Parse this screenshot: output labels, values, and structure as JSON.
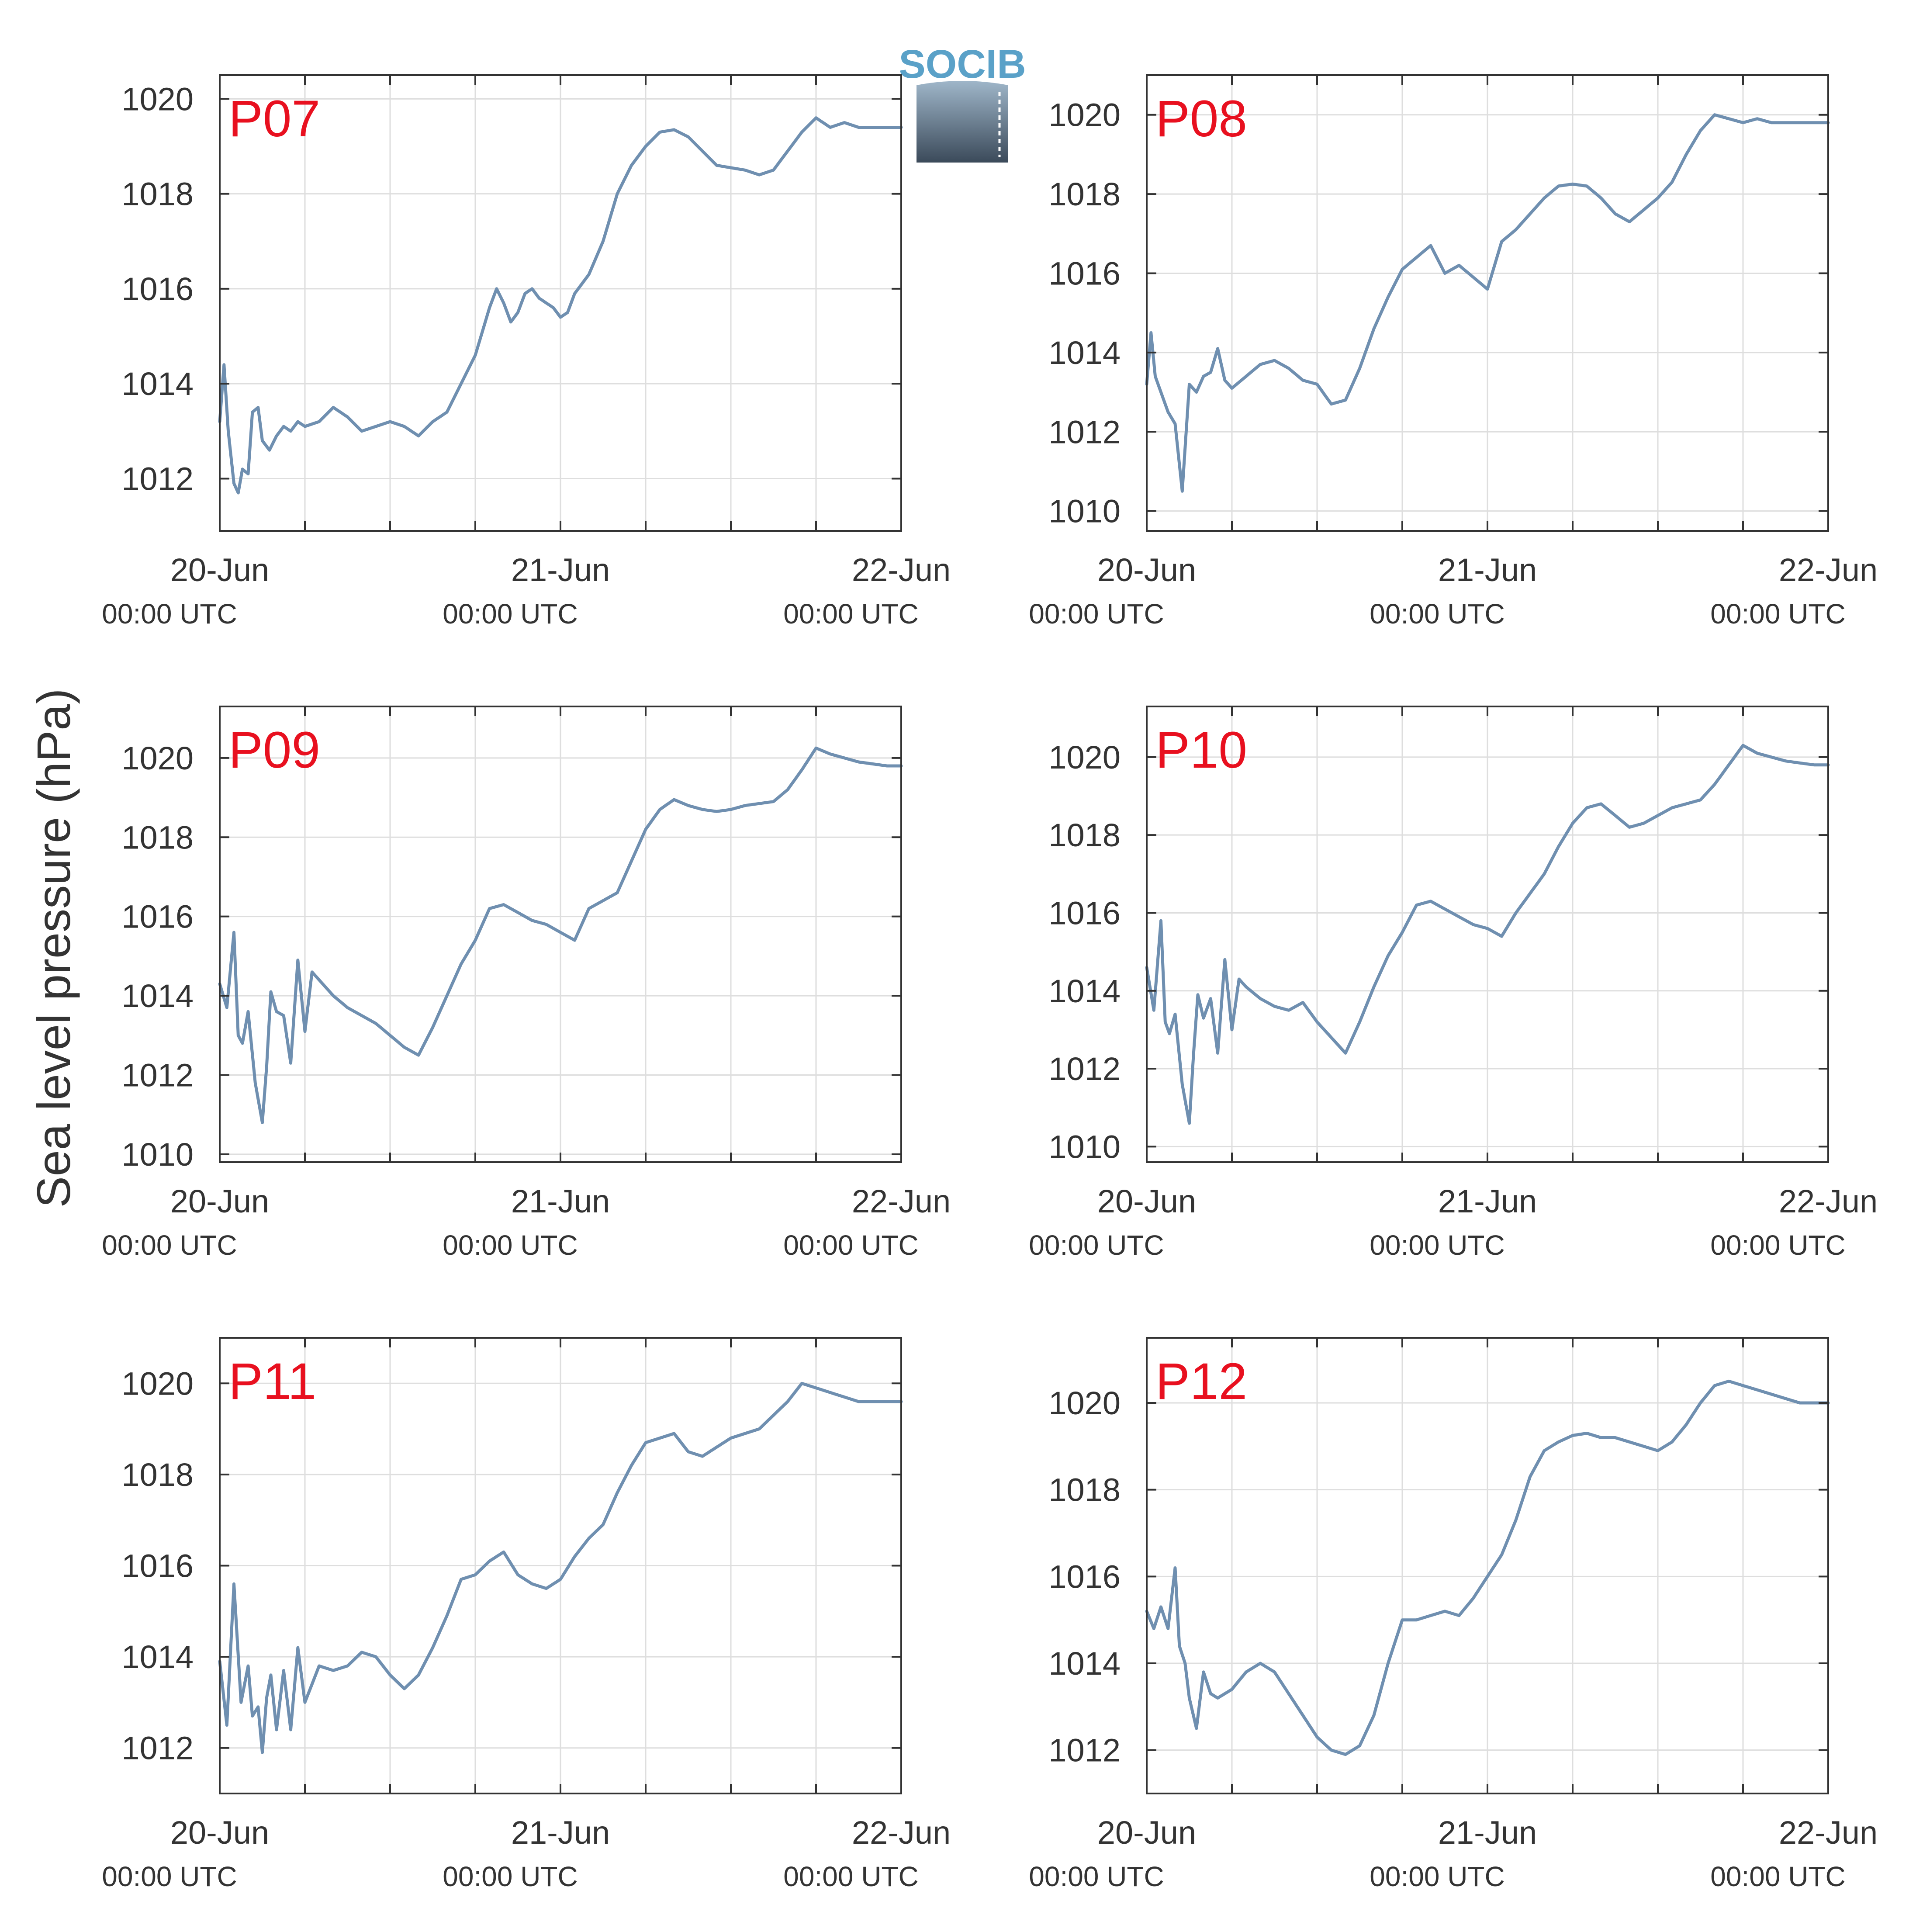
{
  "figure": {
    "ylabel": "Sea level pressure (hPa)",
    "logo_text": "SOCIB"
  },
  "colors": {
    "line": "#6f8fb0",
    "station_label": "#e8101f",
    "grid": "#dedede",
    "axis": "#333333",
    "logo_blue": "#5aa1c8",
    "logo_dark": "#3b4a5a"
  },
  "chart_data": [
    {
      "type": "line",
      "station": "P07",
      "x_tick_labels": [
        [
          "20-Jun",
          "00:00 UTC"
        ],
        [
          "21-Jun",
          "00:00 UTC"
        ],
        [
          "22-Jun",
          "00:00 UTC"
        ]
      ],
      "x_range_hours": [
        0,
        48
      ],
      "ylim": [
        1010.9,
        1020.5
      ],
      "y_ticks": [
        1012,
        1014,
        1016,
        1018,
        1020
      ],
      "grid": true,
      "series": [
        {
          "x": [
            0,
            0.3,
            0.6,
            1,
            1.3,
            1.6,
            2,
            2.3,
            2.7,
            3,
            3.5,
            4,
            4.5,
            5,
            5.5,
            6,
            7,
            8,
            9,
            10,
            11,
            12,
            13,
            14,
            15,
            16,
            17,
            18,
            18.5,
            19,
            19.5,
            20,
            20.5,
            21,
            21.5,
            22,
            22.5,
            23,
            23.5,
            24,
            24.5,
            25,
            25.5,
            26,
            27,
            28,
            29,
            30,
            31,
            32,
            33,
            34,
            35,
            36,
            37,
            38,
            39,
            40,
            41,
            42,
            43,
            44,
            45,
            46,
            47,
            48
          ],
          "y": [
            1013.2,
            1014.4,
            1013.0,
            1011.9,
            1011.7,
            1012.2,
            1012.1,
            1013.4,
            1013.5,
            1012.8,
            1012.6,
            1012.9,
            1013.1,
            1013.0,
            1013.2,
            1013.1,
            1013.2,
            1013.5,
            1013.3,
            1013.0,
            1013.1,
            1013.2,
            1013.1,
            1012.9,
            1013.2,
            1013.4,
            1014.0,
            1014.6,
            1015.1,
            1015.6,
            1016.0,
            1015.7,
            1015.3,
            1015.5,
            1015.9,
            1016.0,
            1015.8,
            1015.7,
            1015.6,
            1015.4,
            1015.5,
            1015.9,
            1016.1,
            1016.3,
            1017.0,
            1018.0,
            1018.6,
            1019.0,
            1019.3,
            1019.35,
            1019.2,
            1018.9,
            1018.6,
            1018.55,
            1018.5,
            1018.4,
            1018.5,
            1018.9,
            1019.3,
            1019.6,
            1019.4,
            1019.5,
            1019.4,
            1019.4,
            1019.4,
            1019.4
          ]
        }
      ]
    },
    {
      "type": "line",
      "station": "P08",
      "x_tick_labels": [
        [
          "20-Jun",
          "00:00 UTC"
        ],
        [
          "21-Jun",
          "00:00 UTC"
        ],
        [
          "22-Jun",
          "00:00 UTC"
        ]
      ],
      "x_range_hours": [
        0,
        48
      ],
      "ylim": [
        1009.5,
        1021.0
      ],
      "y_ticks": [
        1010,
        1012,
        1014,
        1016,
        1018,
        1020
      ],
      "grid": true,
      "series": [
        {
          "x": [
            0,
            0.3,
            0.6,
            1,
            1.5,
            2,
            2.5,
            3,
            3.5,
            4,
            4.5,
            5,
            5.5,
            6,
            7,
            8,
            9,
            10,
            11,
            12,
            13,
            14,
            15,
            16,
            17,
            18,
            19,
            20,
            21,
            22,
            23,
            24,
            25,
            26,
            27,
            28,
            29,
            30,
            31,
            32,
            33,
            34,
            35,
            36,
            37,
            38,
            39,
            40,
            41,
            42,
            43,
            44,
            45,
            46,
            47,
            48
          ],
          "y": [
            1013.2,
            1014.5,
            1013.4,
            1013.0,
            1012.5,
            1012.2,
            1010.5,
            1013.2,
            1013.0,
            1013.4,
            1013.5,
            1014.1,
            1013.3,
            1013.1,
            1013.4,
            1013.7,
            1013.8,
            1013.6,
            1013.3,
            1013.2,
            1012.7,
            1012.8,
            1013.6,
            1014.6,
            1015.4,
            1016.1,
            1016.4,
            1016.7,
            1016.0,
            1016.2,
            1015.9,
            1015.6,
            1016.8,
            1017.1,
            1017.5,
            1017.9,
            1018.2,
            1018.25,
            1018.2,
            1017.9,
            1017.5,
            1017.3,
            1017.6,
            1017.9,
            1018.3,
            1019.0,
            1019.6,
            1020.0,
            1019.9,
            1019.8,
            1019.9,
            1019.8,
            1019.8,
            1019.8,
            1019.8,
            1019.8
          ]
        }
      ]
    },
    {
      "type": "line",
      "station": "P09",
      "x_tick_labels": [
        [
          "20-Jun",
          "00:00 UTC"
        ],
        [
          "21-Jun",
          "00:00 UTC"
        ],
        [
          "22-Jun",
          "00:00 UTC"
        ]
      ],
      "x_range_hours": [
        0,
        48
      ],
      "ylim": [
        1009.8,
        1021.3
      ],
      "y_ticks": [
        1010,
        1012,
        1014,
        1016,
        1018,
        1020
      ],
      "grid": true,
      "series": [
        {
          "x": [
            0,
            0.5,
            1,
            1.3,
            1.6,
            2,
            2.5,
            3,
            3.3,
            3.6,
            4,
            4.5,
            5,
            5.5,
            6,
            6.5,
            7,
            8,
            9,
            10,
            11,
            12,
            13,
            14,
            15,
            16,
            17,
            18,
            19,
            20,
            21,
            22,
            23,
            24,
            25,
            26,
            27,
            28,
            29,
            30,
            31,
            32,
            33,
            34,
            35,
            36,
            37,
            38,
            39,
            40,
            41,
            42,
            43,
            44,
            45,
            46,
            47,
            48
          ],
          "y": [
            1014.3,
            1013.7,
            1015.6,
            1013.0,
            1012.8,
            1013.6,
            1011.8,
            1010.8,
            1012.2,
            1014.1,
            1013.6,
            1013.5,
            1012.3,
            1014.9,
            1013.1,
            1014.6,
            1014.4,
            1014.0,
            1013.7,
            1013.5,
            1013.3,
            1013.0,
            1012.7,
            1012.5,
            1013.2,
            1014.0,
            1014.8,
            1015.4,
            1016.2,
            1016.3,
            1016.1,
            1015.9,
            1015.8,
            1015.6,
            1015.4,
            1016.2,
            1016.4,
            1016.6,
            1017.4,
            1018.2,
            1018.7,
            1018.95,
            1018.8,
            1018.7,
            1018.65,
            1018.7,
            1018.8,
            1018.85,
            1018.9,
            1019.2,
            1019.7,
            1020.25,
            1020.1,
            1020.0,
            1019.9,
            1019.85,
            1019.8,
            1019.8
          ]
        }
      ]
    },
    {
      "type": "line",
      "station": "P10",
      "x_tick_labels": [
        [
          "20-Jun",
          "00:00 UTC"
        ],
        [
          "21-Jun",
          "00:00 UTC"
        ],
        [
          "22-Jun",
          "00:00 UTC"
        ]
      ],
      "x_range_hours": [
        0,
        48
      ],
      "ylim": [
        1009.6,
        1021.3
      ],
      "y_ticks": [
        1010,
        1012,
        1014,
        1016,
        1018,
        1020
      ],
      "grid": true,
      "series": [
        {
          "x": [
            0,
            0.5,
            1,
            1.3,
            1.6,
            2,
            2.5,
            3,
            3.3,
            3.6,
            4,
            4.5,
            5,
            5.5,
            6,
            6.5,
            7,
            8,
            9,
            10,
            11,
            12,
            13,
            14,
            15,
            16,
            17,
            18,
            19,
            20,
            21,
            22,
            23,
            24,
            25,
            26,
            27,
            28,
            29,
            30,
            31,
            32,
            33,
            34,
            35,
            36,
            37,
            38,
            39,
            40,
            41,
            42,
            43,
            44,
            45,
            46,
            47,
            48
          ],
          "y": [
            1014.6,
            1013.5,
            1015.8,
            1013.2,
            1012.9,
            1013.4,
            1011.6,
            1010.6,
            1012.4,
            1013.9,
            1013.3,
            1013.8,
            1012.4,
            1014.8,
            1013.0,
            1014.3,
            1014.1,
            1013.8,
            1013.6,
            1013.5,
            1013.7,
            1013.2,
            1012.8,
            1012.4,
            1013.2,
            1014.1,
            1014.9,
            1015.5,
            1016.2,
            1016.3,
            1016.1,
            1015.9,
            1015.7,
            1015.6,
            1015.4,
            1016.0,
            1016.5,
            1017.0,
            1017.7,
            1018.3,
            1018.7,
            1018.8,
            1018.5,
            1018.2,
            1018.3,
            1018.5,
            1018.7,
            1018.8,
            1018.9,
            1019.3,
            1019.8,
            1020.3,
            1020.1,
            1020.0,
            1019.9,
            1019.85,
            1019.8,
            1019.8
          ]
        }
      ]
    },
    {
      "type": "line",
      "station": "P11",
      "x_tick_labels": [
        [
          "20-Jun",
          "00:00 UTC"
        ],
        [
          "21-Jun",
          "00:00 UTC"
        ],
        [
          "22-Jun",
          "00:00 UTC"
        ]
      ],
      "x_range_hours": [
        0,
        48
      ],
      "ylim": [
        1011.0,
        1021.0
      ],
      "y_ticks": [
        1012,
        1014,
        1016,
        1018,
        1020
      ],
      "grid": true,
      "series": [
        {
          "x": [
            0,
            0.5,
            1,
            1.5,
            2,
            2.3,
            2.7,
            3,
            3.3,
            3.6,
            4,
            4.5,
            5,
            5.5,
            6,
            6.5,
            7,
            8,
            9,
            10,
            11,
            12,
            13,
            14,
            15,
            16,
            17,
            18,
            19,
            20,
            21,
            22,
            23,
            24,
            25,
            26,
            27,
            28,
            29,
            30,
            31,
            32,
            33,
            34,
            35,
            36,
            37,
            38,
            39,
            40,
            41,
            42,
            43,
            44,
            45,
            46,
            47,
            48
          ],
          "y": [
            1013.9,
            1012.5,
            1015.6,
            1013.0,
            1013.8,
            1012.7,
            1012.9,
            1011.9,
            1013.1,
            1013.6,
            1012.4,
            1013.7,
            1012.4,
            1014.2,
            1013.0,
            1013.4,
            1013.8,
            1013.7,
            1013.8,
            1014.1,
            1014.0,
            1013.6,
            1013.3,
            1013.6,
            1014.2,
            1014.9,
            1015.7,
            1015.8,
            1016.1,
            1016.3,
            1015.8,
            1015.6,
            1015.5,
            1015.7,
            1016.2,
            1016.6,
            1016.9,
            1017.6,
            1018.2,
            1018.7,
            1018.8,
            1018.9,
            1018.5,
            1018.4,
            1018.6,
            1018.8,
            1018.9,
            1019.0,
            1019.3,
            1019.6,
            1020.0,
            1019.9,
            1019.8,
            1019.7,
            1019.6,
            1019.6,
            1019.6,
            1019.6
          ]
        }
      ]
    },
    {
      "type": "line",
      "station": "P12",
      "x_tick_labels": [
        [
          "20-Jun",
          "00:00 UTC"
        ],
        [
          "21-Jun",
          "00:00 UTC"
        ],
        [
          "22-Jun",
          "00:00 UTC"
        ]
      ],
      "x_range_hours": [
        0,
        48
      ],
      "ylim": [
        1011.0,
        1021.5
      ],
      "y_ticks": [
        1012,
        1014,
        1016,
        1018,
        1020
      ],
      "grid": true,
      "series": [
        {
          "x": [
            0,
            0.5,
            1,
            1.5,
            2,
            2.3,
            2.7,
            3,
            3.5,
            4,
            4.5,
            5,
            6,
            7,
            8,
            9,
            10,
            11,
            12,
            13,
            14,
            15,
            16,
            17,
            18,
            19,
            20,
            21,
            22,
            23,
            24,
            25,
            26,
            27,
            28,
            29,
            30,
            31,
            32,
            33,
            34,
            35,
            36,
            37,
            38,
            39,
            40,
            41,
            42,
            43,
            44,
            45,
            46,
            47,
            48
          ],
          "y": [
            1015.2,
            1014.8,
            1015.3,
            1014.8,
            1016.2,
            1014.4,
            1014.0,
            1013.2,
            1012.5,
            1013.8,
            1013.3,
            1013.2,
            1013.4,
            1013.8,
            1014.0,
            1013.8,
            1013.3,
            1012.8,
            1012.3,
            1012.0,
            1011.9,
            1012.1,
            1012.8,
            1014.0,
            1015.0,
            1015.0,
            1015.1,
            1015.2,
            1015.1,
            1015.5,
            1016.0,
            1016.5,
            1017.3,
            1018.3,
            1018.9,
            1019.1,
            1019.25,
            1019.3,
            1019.2,
            1019.2,
            1019.1,
            1019.0,
            1018.9,
            1019.1,
            1019.5,
            1020.0,
            1020.4,
            1020.5,
            1020.4,
            1020.3,
            1020.2,
            1020.1,
            1020.0,
            1020.0,
            1020.0
          ]
        }
      ]
    }
  ]
}
